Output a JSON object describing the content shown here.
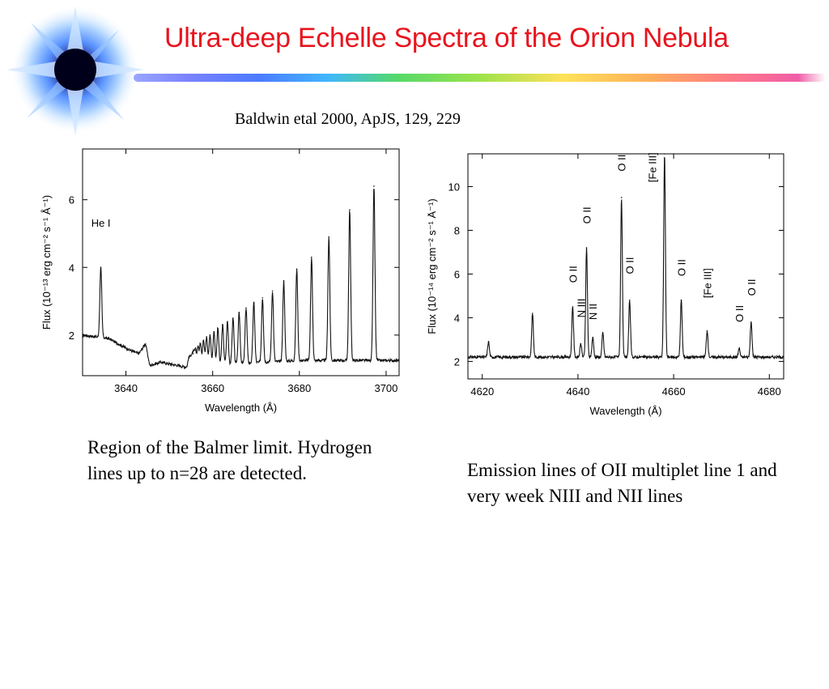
{
  "title": "Ultra-deep Echelle Spectra of the Orion Nebula",
  "citation": "Baldwin etal 2000, ApJS, 129, 229",
  "captions": {
    "left": "Region of the Balmer limit. Hydrogen lines up to n=28 are detected.",
    "right": "Emission lines of OII multiplet line 1 and very week NIII and NII lines"
  },
  "colors": {
    "title": "#e8141e",
    "trace": "#111111",
    "axes": "#000000"
  },
  "chart_data": [
    {
      "type": "line",
      "title": "",
      "xlabel": "Wavelength (Å)",
      "ylabel": "Flux (10⁻¹³ erg cm⁻² s⁻¹ Å⁻¹)",
      "xlim": [
        3630,
        3703
      ],
      "ylim": [
        0.8,
        7.5
      ],
      "xticks": [
        3640,
        3660,
        3680,
        3700
      ],
      "yticks": [
        2,
        4,
        6
      ],
      "grid": false,
      "baseline": [
        [
          3630,
          2.0
        ],
        [
          3636,
          1.9
        ],
        [
          3641,
          1.55
        ],
        [
          3643,
          1.45
        ],
        [
          3644.5,
          1.75
        ],
        [
          3645.5,
          1.1
        ],
        [
          3648,
          1.2
        ],
        [
          3652,
          1.1
        ],
        [
          3656,
          1.0
        ],
        [
          3660,
          1.1
        ],
        [
          3665,
          1.15
        ],
        [
          3672,
          1.2
        ],
        [
          3680,
          1.25
        ],
        [
          3688,
          1.25
        ],
        [
          3695,
          1.25
        ],
        [
          3703,
          1.25
        ]
      ],
      "lines": [
        {
          "x": 3634.2,
          "y": 4.0
        },
        {
          "x": 3697.2,
          "y": 6.4
        },
        {
          "x": 3691.6,
          "y": 5.7
        },
        {
          "x": 3686.8,
          "y": 4.9
        },
        {
          "x": 3682.8,
          "y": 4.3
        },
        {
          "x": 3679.4,
          "y": 3.95
        },
        {
          "x": 3676.4,
          "y": 3.6
        },
        {
          "x": 3673.8,
          "y": 3.3
        },
        {
          "x": 3671.5,
          "y": 3.1
        },
        {
          "x": 3669.5,
          "y": 2.95
        },
        {
          "x": 3667.7,
          "y": 2.8
        },
        {
          "x": 3666.1,
          "y": 2.65
        },
        {
          "x": 3664.7,
          "y": 2.5
        },
        {
          "x": 3663.4,
          "y": 2.4
        },
        {
          "x": 3662.3,
          "y": 2.3
        },
        {
          "x": 3661.2,
          "y": 2.2
        },
        {
          "x": 3660.3,
          "y": 2.1
        },
        {
          "x": 3659.4,
          "y": 2.0
        },
        {
          "x": 3658.6,
          "y": 1.95
        },
        {
          "x": 3657.9,
          "y": 1.85
        },
        {
          "x": 3657.2,
          "y": 1.75
        },
        {
          "x": 3656.6,
          "y": 1.65
        },
        {
          "x": 3656.0,
          "y": 1.55
        },
        {
          "x": 3655.5,
          "y": 1.45
        },
        {
          "x": 3655.0,
          "y": 1.38
        },
        {
          "x": 3654.5,
          "y": 1.32
        }
      ],
      "annotations": [
        {
          "text": "He I",
          "x": 3632,
          "y": 5.2,
          "rotate": false
        }
      ]
    },
    {
      "type": "line",
      "title": "",
      "xlabel": "Wavelength (Å)",
      "ylabel": "Flux (10⁻¹⁴ erg cm⁻² s⁻¹ Å⁻¹)",
      "xlim": [
        4617,
        4683
      ],
      "ylim": [
        1.2,
        11.5
      ],
      "xticks": [
        4620,
        4640,
        4660,
        4680
      ],
      "yticks": [
        2,
        4,
        6,
        8,
        10
      ],
      "grid": false,
      "baseline": [
        [
          4617,
          2.2
        ],
        [
          4683,
          2.2
        ]
      ],
      "lines": [
        {
          "x": 4621.3,
          "y": 2.9
        },
        {
          "x": 4630.5,
          "y": 4.2
        },
        {
          "x": 4638.9,
          "y": 4.5
        },
        {
          "x": 4640.6,
          "y": 2.8
        },
        {
          "x": 4641.8,
          "y": 7.2
        },
        {
          "x": 4643.1,
          "y": 3.1
        },
        {
          "x": 4645.2,
          "y": 3.3
        },
        {
          "x": 4649.1,
          "y": 9.5
        },
        {
          "x": 4650.8,
          "y": 4.8
        },
        {
          "x": 4658.1,
          "y": 11.5
        },
        {
          "x": 4661.6,
          "y": 4.8
        },
        {
          "x": 4667.0,
          "y": 3.4
        },
        {
          "x": 4673.7,
          "y": 2.6
        },
        {
          "x": 4676.2,
          "y": 3.8
        }
      ],
      "annotations": [
        {
          "text": "O II",
          "x": 4638.9,
          "y": 5.6,
          "rotate": true
        },
        {
          "text": "N III",
          "x": 4640.6,
          "y": 4.0,
          "rotate": true
        },
        {
          "text": "O II",
          "x": 4641.8,
          "y": 8.3,
          "rotate": true
        },
        {
          "text": "N II",
          "x": 4643.1,
          "y": 3.9,
          "rotate": true
        },
        {
          "text": "O II",
          "x": 4649.1,
          "y": 10.7,
          "rotate": true
        },
        {
          "text": "O II",
          "x": 4650.8,
          "y": 6.0,
          "rotate": true
        },
        {
          "text": "[Fe III]",
          "x": 4655.5,
          "y": 10.2,
          "rotate": true
        },
        {
          "text": "O II",
          "x": 4661.6,
          "y": 5.9,
          "rotate": true
        },
        {
          "text": "[Fe III]",
          "x": 4667.0,
          "y": 4.9,
          "rotate": true
        },
        {
          "text": "O II",
          "x": 4673.7,
          "y": 3.8,
          "rotate": true
        },
        {
          "text": "O II",
          "x": 4676.2,
          "y": 5.0,
          "rotate": true
        }
      ]
    }
  ]
}
